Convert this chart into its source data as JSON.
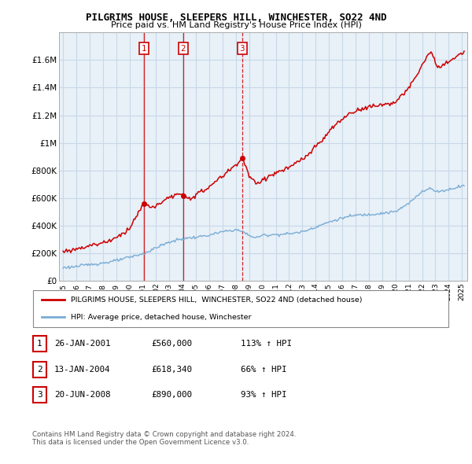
{
  "title": "PILGRIMS HOUSE, SLEEPERS HILL, WINCHESTER, SO22 4ND",
  "subtitle": "Price paid vs. HM Land Registry's House Price Index (HPI)",
  "ylim": [
    0,
    1800000
  ],
  "yticks": [
    0,
    200000,
    400000,
    600000,
    800000,
    1000000,
    1200000,
    1400000,
    1600000
  ],
  "ytick_labels": [
    "£0",
    "£200K",
    "£400K",
    "£600K",
    "£800K",
    "£1M",
    "£1.2M",
    "£1.4M",
    "£1.6M"
  ],
  "sale_prices": [
    560000,
    618340,
    890000
  ],
  "sale_years_dec": [
    2001.07,
    2004.04,
    2008.47
  ],
  "sale_labels": [
    "1",
    "2",
    "3"
  ],
  "sale_linestyles": [
    "-",
    "-",
    "--"
  ],
  "legend_house": "PILGRIMS HOUSE, SLEEPERS HILL,  WINCHESTER, SO22 4ND (detached house)",
  "legend_hpi": "HPI: Average price, detached house, Winchester",
  "table_rows": [
    [
      "1",
      "26-JAN-2001",
      "£560,000",
      "113% ↑ HPI"
    ],
    [
      "2",
      "13-JAN-2004",
      "£618,340",
      "66% ↑ HPI"
    ],
    [
      "3",
      "20-JUN-2008",
      "£890,000",
      "93% ↑ HPI"
    ]
  ],
  "footnote1": "Contains HM Land Registry data © Crown copyright and database right 2024.",
  "footnote2": "This data is licensed under the Open Government Licence v3.0.",
  "house_color": "#cc0000",
  "hpi_color": "#7aadd4",
  "chart_bg": "#e8f0f8",
  "background_color": "#ffffff",
  "grid_color": "#c8d8e8"
}
